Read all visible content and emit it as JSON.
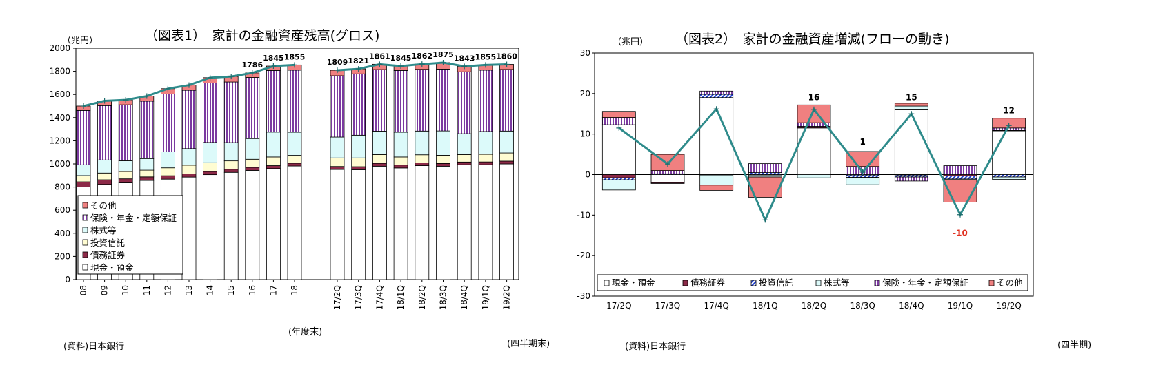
{
  "chart_data": [
    {
      "type": "bar",
      "stacked": true,
      "title": "（図表1）　家計の金融資産残高(グロス)",
      "unit": "（兆円）",
      "ylim": [
        0,
        2000
      ],
      "yticks": [
        0,
        200,
        400,
        600,
        800,
        1000,
        1200,
        1400,
        1600,
        1800,
        2000
      ],
      "annual_axis_label": "(年度末)",
      "quarter_axis_label": "(四半期末)",
      "source": "(資料)日本銀行",
      "legend_position": "bottom-left",
      "categories": [
        "08",
        "09",
        "10",
        "11",
        "12",
        "13",
        "14",
        "15",
        "16",
        "17",
        "18",
        "17/2Q",
        "17/3Q",
        "17/4Q",
        "18/1Q",
        "18/2Q",
        "18/3Q",
        "18/4Q",
        "19/1Q",
        "19/2Q"
      ],
      "series": [
        {
          "name": "現金・預金",
          "color": "#ffffff",
          "pattern": "none",
          "values": [
            800,
            823,
            836,
            857,
            868,
            886,
            907,
            927,
            944,
            960,
            982,
            952,
            950,
            980,
            965,
            985,
            980,
            993,
            993,
            1000
          ]
        },
        {
          "name": "債務証券",
          "color": "#8c2a48",
          "pattern": "none",
          "values": [
            45,
            40,
            35,
            31,
            30,
            28,
            27,
            27,
            26,
            25,
            24,
            26,
            26,
            25,
            25,
            24,
            24,
            23,
            24,
            24
          ]
        },
        {
          "name": "投資信託",
          "color": "#fffcd2",
          "pattern": "none",
          "values": [
            54,
            58,
            63,
            58,
            68,
            75,
            76,
            72,
            70,
            75,
            68,
            74,
            76,
            76,
            70,
            70,
            71,
            65,
            66,
            71
          ]
        },
        {
          "name": "株式等",
          "color": "#dcfafa",
          "pattern": "none",
          "values": [
            93,
            113,
            93,
            100,
            138,
            143,
            175,
            158,
            179,
            215,
            200,
            180,
            196,
            202,
            214,
            205,
            210,
            180,
            197,
            189
          ]
        },
        {
          "name": "保険・年金・定額保証",
          "color": "#a064b9",
          "pattern": "stripes",
          "values": [
            470,
            470,
            484,
            496,
            500,
            504,
            515,
            524,
            528,
            532,
            536,
            530,
            530,
            532,
            533,
            533,
            534,
            535,
            530,
            532
          ]
        },
        {
          "name": "その他",
          "color": "#f08080",
          "pattern": "none",
          "values": [
            38,
            41,
            42,
            44,
            46,
            45,
            45,
            47,
            39,
            38,
            45,
            47,
            43,
            46,
            38,
            45,
            56,
            47,
            45,
            44
          ]
        }
      ],
      "totals": [
        1500,
        1545,
        1553,
        1586,
        1650,
        1681,
        1745,
        1755,
        1786,
        1845,
        1855,
        1809,
        1821,
        1861,
        1845,
        1862,
        1875,
        1843,
        1855,
        1860
      ],
      "total_labels": [
        "",
        "",
        "",
        "",
        "",
        "",
        "",
        "",
        "1786",
        "1845",
        "1855",
        "1809",
        "1821",
        "1861",
        "1845",
        "1862",
        "1875",
        "1843",
        "1855",
        "1860"
      ]
    },
    {
      "type": "bar",
      "stacked": true,
      "title": "（図表2）　家計の金融資産増減(フローの動き)",
      "unit": "（兆円）",
      "ylim": [
        -30,
        30
      ],
      "yticks": [
        -30,
        -20,
        -10,
        0,
        10,
        20,
        30
      ],
      "x_axis_label": "(四半期)",
      "source": "(資料)日本銀行",
      "legend_position": "bottom",
      "categories": [
        "17/2Q",
        "17/3Q",
        "17/4Q",
        "18/1Q",
        "18/2Q",
        "18/3Q",
        "18/4Q",
        "19/1Q",
        "19/2Q"
      ],
      "series": [
        {
          "name": "現金・預金",
          "color": "#ffffff",
          "pattern": "none",
          "values": [
            12.3,
            -2.0,
            19.0,
            0,
            11.5,
            0,
            16.0,
            0,
            10.8
          ]
        },
        {
          "name": "債務証券",
          "color": "#8c2a48",
          "pattern": "none",
          "values": [
            -0.8,
            -0.2,
            -0.1,
            -0.1,
            0.2,
            -0.1,
            -0.1,
            -0.3,
            0.1
          ]
        },
        {
          "name": "投資信託",
          "color": "#4060e0",
          "pattern": "hatch",
          "values": [
            -0.5,
            0.2,
            0.8,
            0.5,
            0.2,
            -0.6,
            -0.5,
            -0.8,
            -0.6
          ]
        },
        {
          "name": "株式等",
          "color": "#dcfafa",
          "pattern": "none",
          "values": [
            -2.5,
            0,
            -2.5,
            -0.5,
            -0.8,
            -1.8,
            0.9,
            -0.2,
            -0.6
          ]
        },
        {
          "name": "保険・年金・定額保証",
          "color": "#a064b9",
          "pattern": "stripes",
          "values": [
            1.8,
            0.8,
            0.8,
            2.2,
            0.9,
            2.0,
            -1.0,
            2.2,
            0.6
          ]
        },
        {
          "name": "その他",
          "color": "#f08080",
          "pattern": "none",
          "values": [
            1.5,
            4.0,
            -1.3,
            -5.0,
            4.4,
            3.7,
            0.7,
            -5.5,
            2.4
          ]
        }
      ],
      "net": [
        11.5,
        2.6,
        16.2,
        -11.2,
        16.1,
        0.6,
        15.0,
        -9.9,
        12.1
      ],
      "net_labels": [
        "",
        "",
        "",
        "",
        "16",
        "1",
        "15",
        "-10",
        "12"
      ]
    }
  ]
}
